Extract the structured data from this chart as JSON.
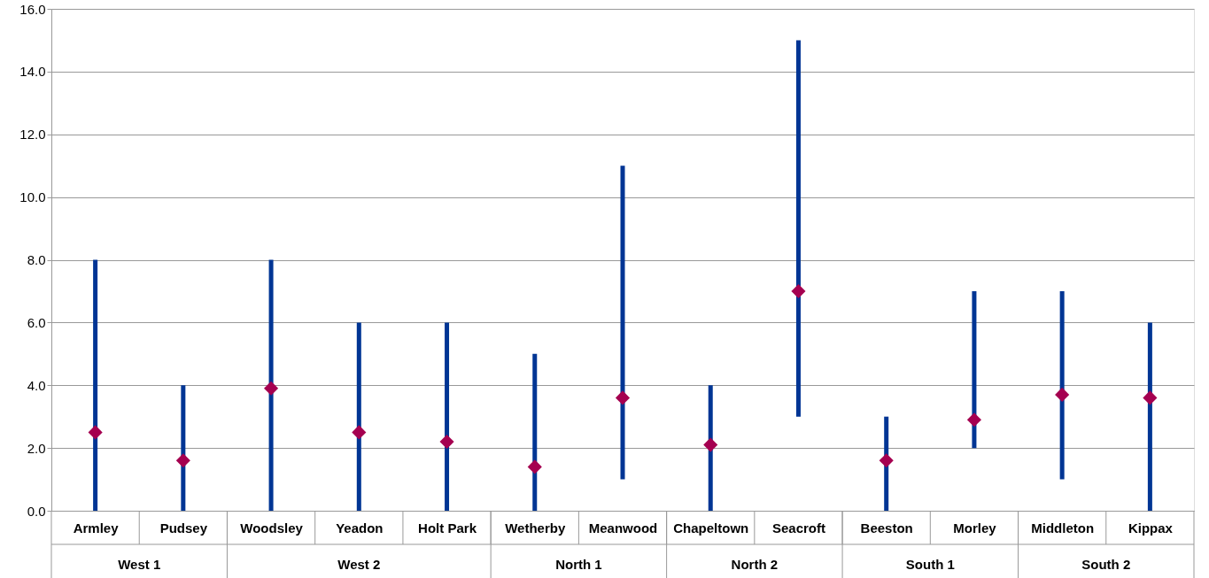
{
  "chart_data": {
    "type": "scatter",
    "marker": "diamond",
    "grid": "y",
    "categories": [
      "Armley",
      "Pudsey",
      "Woodsley",
      "Yeadon",
      "Holt Park",
      "Wetherby",
      "Meanwood",
      "Chapeltown",
      "Seacroft",
      "Beeston",
      "Morley",
      "Middleton",
      "Kippax"
    ],
    "series": [
      {
        "color": "#a50050",
        "values": [
          2.5,
          1.6,
          3.9,
          2.5,
          2.2,
          1.4,
          3.6,
          2.1,
          7.0,
          1.6,
          2.9,
          3.7,
          3.6
        ],
        "errors": [
          [
            0,
            8
          ],
          [
            0,
            4
          ],
          [
            0,
            8
          ],
          [
            0,
            6
          ],
          [
            0,
            6
          ],
          [
            0,
            5
          ],
          [
            1,
            11
          ],
          [
            0,
            4
          ],
          [
            3,
            15
          ],
          [
            0,
            3
          ],
          [
            2,
            7
          ],
          [
            1,
            7
          ],
          [
            0,
            6
          ]
        ]
      }
    ],
    "ylim": [
      0,
      16
    ],
    "yticks": [
      {
        "value": 0,
        "label": "0.0"
      },
      {
        "value": 2,
        "label": "2.0"
      },
      {
        "value": 4,
        "label": "4.0"
      },
      {
        "value": 6,
        "label": "6.0"
      },
      {
        "value": 8,
        "label": "8.0"
      },
      {
        "value": 10,
        "label": "10.0"
      },
      {
        "value": 12,
        "label": "12.0"
      },
      {
        "value": 14,
        "label": "14.0"
      },
      {
        "value": 16,
        "label": "16.0"
      }
    ],
    "annotations": [
      "West 1",
      "West 2",
      "North 1",
      "North 2",
      "South 1",
      "South 2"
    ]
  }
}
